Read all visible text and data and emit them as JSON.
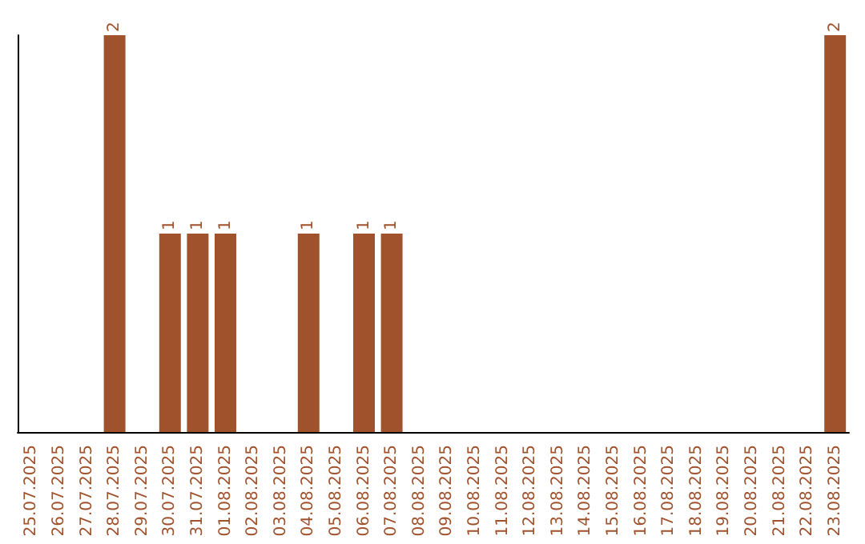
{
  "chart_data": {
    "type": "bar",
    "categories": [
      "25.07.2025",
      "26.07.2025",
      "27.07.2025",
      "28.07.2025",
      "29.07.2025",
      "30.07.2025",
      "31.07.2025",
      "01.08.2025",
      "02.08.2025",
      "03.08.2025",
      "04.08.2025",
      "05.08.2025",
      "06.08.2025",
      "07.08.2025",
      "08.08.2025",
      "09.08.2025",
      "10.08.2025",
      "11.08.2025",
      "12.08.2025",
      "13.08.2025",
      "14.08.2025",
      "15.08.2025",
      "16.08.2025",
      "17.08.2025",
      "18.08.2025",
      "19.08.2025",
      "20.08.2025",
      "21.08.2025",
      "22.08.2025",
      "23.08.2025"
    ],
    "values": [
      0,
      0,
      0,
      2,
      0,
      1,
      1,
      1,
      0,
      0,
      1,
      0,
      1,
      1,
      0,
      0,
      0,
      0,
      0,
      0,
      0,
      0,
      0,
      0,
      0,
      0,
      0,
      0,
      0,
      2
    ],
    "value_labels": [
      null,
      null,
      null,
      "2",
      null,
      "1",
      "1",
      "1",
      null,
      null,
      "1",
      null,
      "1",
      "1",
      null,
      null,
      null,
      null,
      null,
      null,
      null,
      null,
      null,
      null,
      null,
      null,
      null,
      null,
      null,
      "2"
    ],
    "color": "#a0522d",
    "grid": false,
    "tick_labels": "x"
  }
}
